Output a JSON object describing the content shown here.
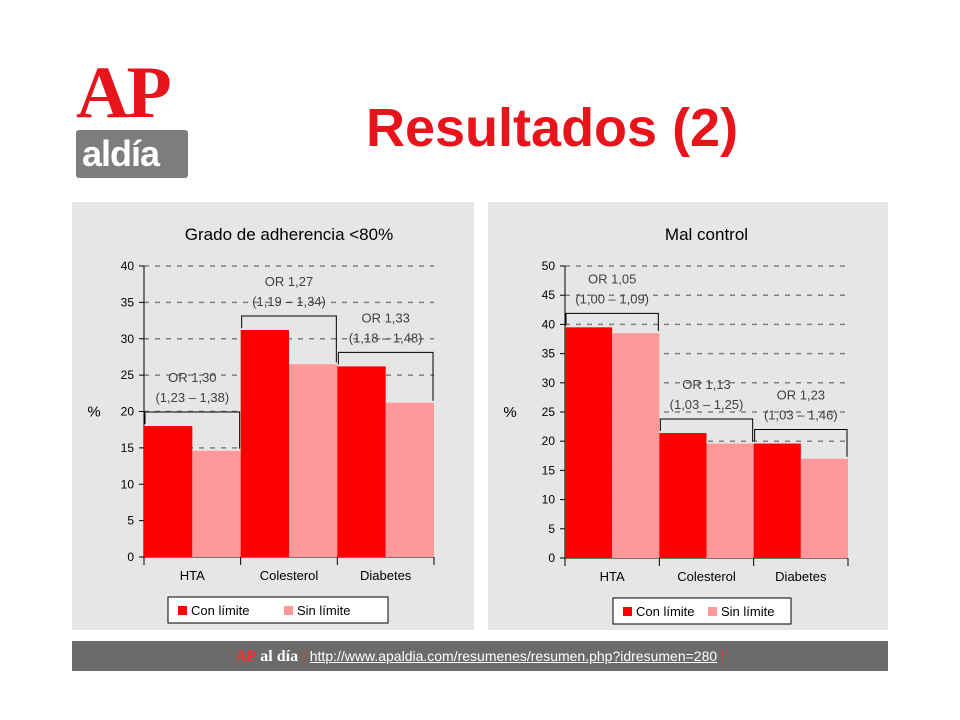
{
  "logo": {
    "ap": "AP",
    "aldia": "aldía"
  },
  "page_title": "Resultados (2)",
  "footer": {
    "ap": "AP",
    "aldia": "al día",
    "open_bracket": "[",
    "link": "http://www.apaldia.com/resumenes/resumen.php?idresumen=280",
    "close_bracket": "]"
  },
  "colors": {
    "con_limite": "#ff0000",
    "sin_limite": "#ff9999",
    "title_red": "#e8141c"
  },
  "chart_data": [
    {
      "type": "bar",
      "title": "Grado de adherencia <80%",
      "ylabel": "%",
      "ylim": [
        0,
        40
      ],
      "yticks": [
        0,
        5,
        10,
        15,
        20,
        25,
        30,
        35,
        40
      ],
      "grid": true,
      "legend": "bottom",
      "categories": [
        "HTA",
        "Colesterol",
        "Diabetes"
      ],
      "series": [
        {
          "name": "Con límite",
          "values": [
            18.0,
            31.2,
            26.2
          ]
        },
        {
          "name": "Sin límite",
          "values": [
            14.6,
            26.5,
            21.2
          ]
        }
      ],
      "annotations": [
        {
          "line1": "OR 1,30",
          "line2": "(1,23 – 1,38)"
        },
        {
          "line1": "OR 1,27",
          "line2": "(1,19 – 1,34)"
        },
        {
          "line1": "OR 1,33",
          "line2": "(1,18 – 1,48)"
        }
      ]
    },
    {
      "type": "bar",
      "title": "Mal control",
      "ylabel": "%",
      "ylim": [
        0,
        50
      ],
      "yticks": [
        0,
        5,
        10,
        15,
        20,
        25,
        30,
        35,
        40,
        45,
        50
      ],
      "grid": true,
      "legend": "bottom",
      "categories": [
        "HTA",
        "Colesterol",
        "Diabetes"
      ],
      "series": [
        {
          "name": "Con límite",
          "values": [
            39.5,
            21.4,
            19.6
          ]
        },
        {
          "name": "Sin límite",
          "values": [
            38.5,
            19.6,
            17.0
          ]
        }
      ],
      "annotations": [
        {
          "line1": "OR 1,05",
          "line2": "(1,00 – 1,09)"
        },
        {
          "line1": "OR 1,13",
          "line2": "(1,03 – 1,25)"
        },
        {
          "line1": "OR 1,23",
          "line2": "(1,03 – 1,46)"
        }
      ]
    }
  ]
}
